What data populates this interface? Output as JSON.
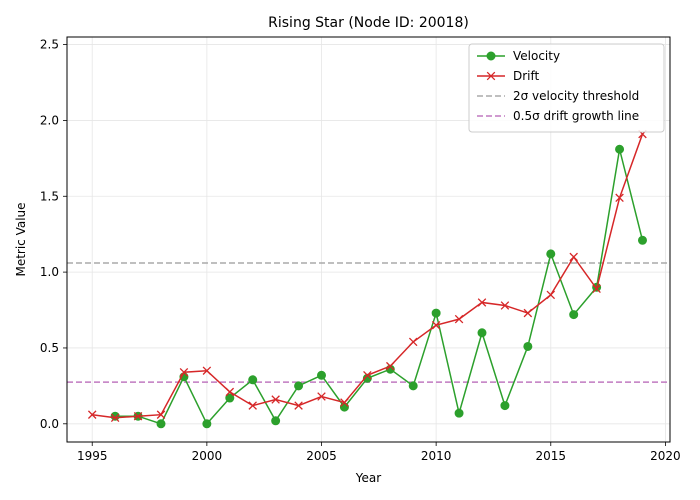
{
  "chart_data": {
    "type": "line",
    "title": "Rising Star (Node ID: 20018)",
    "xlabel": "Year",
    "ylabel": "Metric Value",
    "xlim": [
      1993.9,
      2020.2
    ],
    "ylim": [
      -0.12,
      2.55
    ],
    "xticks": [
      1995,
      2000,
      2005,
      2010,
      2015,
      2020
    ],
    "yticks": [
      0.0,
      0.5,
      1.0,
      1.5,
      2.0,
      2.5
    ],
    "ytick_labels": [
      "0.0",
      "0.5",
      "1.0",
      "1.5",
      "2.0",
      "2.5"
    ],
    "grid": true,
    "legend_position": "upper right",
    "series": [
      {
        "name": "Velocity",
        "color": "#2ca02c",
        "marker": "circle",
        "x": [
          1996,
          1997,
          1998,
          1999,
          2000,
          2001,
          2002,
          2003,
          2004,
          2005,
          2006,
          2007,
          2008,
          2009,
          2010,
          2011,
          2012,
          2013,
          2014,
          2015,
          2016,
          2017,
          2018,
          2019
        ],
        "y": [
          0.05,
          0.05,
          0.0,
          0.31,
          0.0,
          0.17,
          0.29,
          0.02,
          0.25,
          0.32,
          0.11,
          0.3,
          0.36,
          0.25,
          0.73,
          0.07,
          0.6,
          0.12,
          0.51,
          1.12,
          0.72,
          0.9,
          1.81,
          1.21
        ]
      },
      {
        "name": "Drift",
        "color": "#d62728",
        "marker": "x",
        "x": [
          1995,
          1996,
          1997,
          1998,
          1999,
          2000,
          2001,
          2002,
          2003,
          2004,
          2005,
          2006,
          2007,
          2008,
          2009,
          2010,
          2011,
          2012,
          2013,
          2014,
          2015,
          2016,
          2017,
          2018,
          2019
        ],
        "y": [
          0.06,
          0.04,
          0.05,
          0.06,
          0.34,
          0.35,
          0.21,
          0.12,
          0.16,
          0.12,
          0.18,
          0.14,
          0.32,
          0.38,
          0.54,
          0.65,
          0.69,
          0.8,
          0.78,
          0.73,
          0.85,
          1.1,
          0.89,
          1.49,
          1.91
        ]
      }
    ],
    "reference_lines": [
      {
        "name": "2σ velocity threshold",
        "y": 1.06,
        "color": "#aaaaaa",
        "style": "dashed"
      },
      {
        "name": "0.5σ drift growth line",
        "y": 0.275,
        "color": "#c179c1",
        "style": "dashed"
      }
    ]
  }
}
